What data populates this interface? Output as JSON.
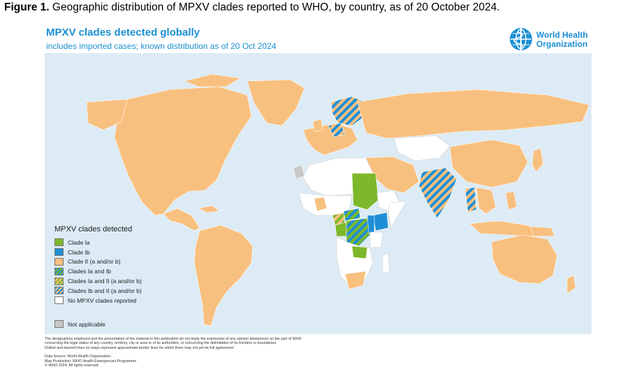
{
  "figure": {
    "label": "Figure 1.",
    "caption": " Geographic distribution of MPXV clades reported to WHO, by country, as of 20 October 2024."
  },
  "map": {
    "title": "MPXV clades detected globally",
    "subtitle": "includes imported cases; known distribution as of 20 Oct 2024",
    "logo_line1": "World Health",
    "logo_line2": "Organization",
    "legend_title": "MPXV clades detected",
    "legend": [
      {
        "label": "Clade Ia",
        "color": "#7cb829"
      },
      {
        "label": "Clade Ib",
        "color": "#1e8fd6"
      },
      {
        "label": "Clade II (a and/or b)",
        "color": "#f8c07f"
      },
      {
        "label": "Clades Ia and Ib",
        "color": "#7cb829",
        "hatch": "#1e8fd6"
      },
      {
        "label": "Clades Ia and II (a and/or b)",
        "color": "#f8c07f",
        "hatch": "#7cb829"
      },
      {
        "label": "Clades Ib and II (a and/or b)",
        "color": "#f8c07f",
        "hatch": "#1e8fd6"
      },
      {
        "label": "No MPXV clades reported",
        "color": "#ffffff"
      }
    ],
    "not_applicable": {
      "label": "Not applicable",
      "color": "#c8c8c8"
    },
    "colors": {
      "ocean": "#dcebf5",
      "clade_ii": "#f8c07f",
      "clade_ia": "#7cb829",
      "clade_ib": "#1e8fd6",
      "none": "#ffffff",
      "not_applicable": "#c8c8c8",
      "title": "#1b8fd2"
    }
  },
  "footer": {
    "disclaimer1": "The designations employed and the presentation of the material in this publication do not imply the expression of any opinion whatsoever on the part of WHO",
    "disclaimer2": "concerning the legal status of any country, territory, city or area or of its authorities, or concerning the delimitation of its frontiers or boundaries.",
    "disclaimer3": "Dotted and dashed lines on maps represent approximate border lines for which there may not yet be full agreement.",
    "source": "Data Source: World Health Organization",
    "production": "Map Production: WHO Health Emergencies Programme",
    "copyright": "© WHO 2024. All rights reserved."
  }
}
